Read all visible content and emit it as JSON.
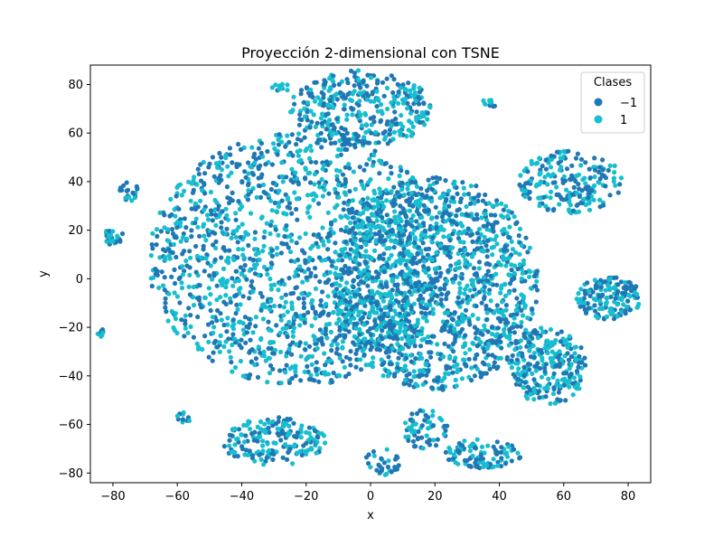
{
  "chart_data": {
    "type": "scatter",
    "title": "Proyección 2-dimensional con TSNE",
    "xlabel": "x",
    "ylabel": "y",
    "xlim": [
      -87,
      87
    ],
    "ylim": [
      -84,
      88
    ],
    "xticks": [
      -80,
      -60,
      -40,
      -20,
      0,
      20,
      40,
      60,
      80
    ],
    "xtick_labels": [
      "−80",
      "−60",
      "−40",
      "−20",
      "0",
      "20",
      "40",
      "60",
      "80"
    ],
    "yticks": [
      -80,
      -60,
      -40,
      -20,
      0,
      20,
      40,
      60,
      80
    ],
    "ytick_labels": [
      "−80",
      "−60",
      "−40",
      "−20",
      "0",
      "20",
      "40",
      "60",
      "80"
    ],
    "grid": false,
    "legend": {
      "title": "Clases",
      "position": "top-right",
      "entries": [
        {
          "label": "−1",
          "color": "#1f77b4"
        },
        {
          "label": "1",
          "color": "#17becf"
        }
      ]
    },
    "series": [
      {
        "label_ref": "−1",
        "color": "#1f77b4"
      },
      {
        "label_ref": "1",
        "color": "#17becf"
      }
    ],
    "clusters": [
      {
        "shape": "ellipse",
        "center": [
          -22,
          8
        ],
        "radius": [
          47,
          52
        ],
        "weight": 0.3
      },
      {
        "shape": "ellipse",
        "center": [
          20,
          -2
        ],
        "radius": [
          32,
          44
        ],
        "weight": 0.26
      },
      {
        "shape": "ellipse",
        "center": [
          -3,
          70
        ],
        "radius": [
          22,
          16
        ],
        "weight": 0.07
      },
      {
        "shape": "ellipse",
        "center": [
          55,
          -36
        ],
        "radius": [
          12,
          16
        ],
        "weight": 0.05
      },
      {
        "shape": "ellipse",
        "center": [
          74,
          -8
        ],
        "radius": [
          10,
          9
        ],
        "weight": 0.03
      },
      {
        "shape": "ellipse",
        "center": [
          62,
          40
        ],
        "radius": [
          16,
          13
        ],
        "weight": 0.04
      },
      {
        "shape": "ellipse",
        "center": [
          -30,
          -67
        ],
        "radius": [
          16,
          10
        ],
        "weight": 0.035
      },
      {
        "shape": "ellipse",
        "center": [
          35,
          -72
        ],
        "radius": [
          12,
          6
        ],
        "weight": 0.02
      },
      {
        "shape": "ellipse",
        "center": [
          17,
          -62
        ],
        "radius": [
          7,
          8
        ],
        "weight": 0.012
      },
      {
        "shape": "ellipse",
        "center": [
          -80,
          17
        ],
        "radius": [
          4,
          3
        ],
        "weight": 0.005
      },
      {
        "shape": "ellipse",
        "center": [
          -75,
          36
        ],
        "radius": [
          3,
          4
        ],
        "weight": 0.004
      },
      {
        "shape": "ellipse",
        "center": [
          -28,
          79
        ],
        "radius": [
          3,
          2
        ],
        "weight": 0.002
      },
      {
        "shape": "ellipse",
        "center": [
          36,
          72
        ],
        "radius": [
          3,
          2
        ],
        "weight": 0.002
      },
      {
        "shape": "ellipse",
        "center": [
          -58,
          -57
        ],
        "radius": [
          2,
          3
        ],
        "weight": 0.002
      },
      {
        "shape": "ellipse",
        "center": [
          -84,
          -22
        ],
        "radius": [
          1,
          2
        ],
        "weight": 0.001
      },
      {
        "shape": "ellipse",
        "center": [
          4,
          -75
        ],
        "radius": [
          6,
          6
        ],
        "weight": 0.006
      }
    ]
  }
}
